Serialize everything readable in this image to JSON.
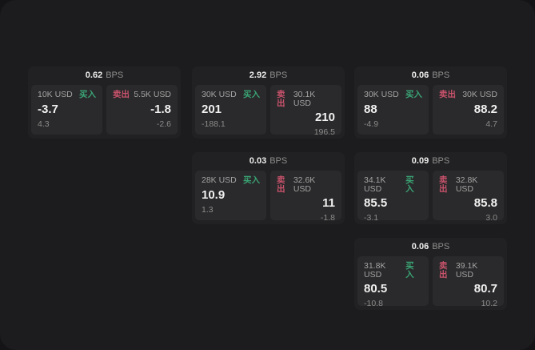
{
  "labels": {
    "bps": "BPS",
    "buy": "买入",
    "sell": "卖出"
  },
  "colors": {
    "buy_green": "#3aa374",
    "sell_red": "#c9526b",
    "panel_background": "#1c1c1e",
    "card_background": "#212123",
    "quote_background": "#2a2a2c"
  },
  "cards": [
    {
      "bps": "0.62",
      "buy": {
        "amount": "10K USD",
        "value": "-3.7",
        "sub": "4.3"
      },
      "sell": {
        "amount": "5.5K USD",
        "value": "-1.8",
        "sub": "-2.6"
      }
    },
    {
      "bps": "2.92",
      "buy": {
        "amount": "30K USD",
        "value": "201",
        "sub": "-188.1"
      },
      "sell": {
        "amount": "30.1K USD",
        "value": "210",
        "sub": "196.5"
      }
    },
    {
      "bps": "0.06",
      "buy": {
        "amount": "30K USD",
        "value": "88",
        "sub": "-4.9"
      },
      "sell": {
        "amount": "30K USD",
        "value": "88.2",
        "sub": "4.7"
      }
    },
    {
      "bps": "0.03",
      "buy": {
        "amount": "28K USD",
        "value": "10.9",
        "sub": "1.3"
      },
      "sell": {
        "amount": "32.6K USD",
        "value": "11",
        "sub": "-1.8"
      }
    },
    {
      "bps": "0.09",
      "buy": {
        "amount": "34.1K USD",
        "value": "85.5",
        "sub": "-3.1"
      },
      "sell": {
        "amount": "32.8K USD",
        "value": "85.8",
        "sub": "3.0"
      }
    },
    {
      "bps": "0.06",
      "buy": {
        "amount": "31.8K USD",
        "value": "80.5",
        "sub": "-10.8"
      },
      "sell": {
        "amount": "39.1K USD",
        "value": "80.7",
        "sub": "10.2"
      }
    }
  ]
}
